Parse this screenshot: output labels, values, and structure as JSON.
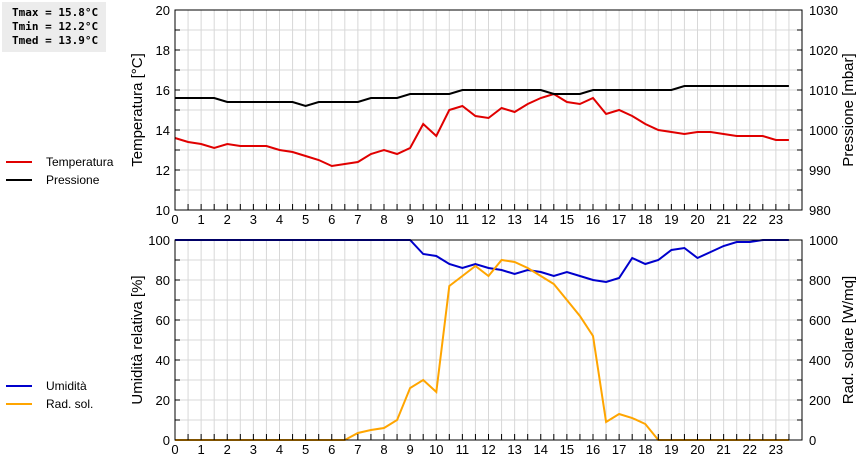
{
  "stats": {
    "tmax": "Tmax = 15.8°C",
    "tmin": "Tmin = 12.2°C",
    "tmed": "Tmed = 13.9°C"
  },
  "legend_top": [
    {
      "label": "Temperatura",
      "color": "#e00000"
    },
    {
      "label": "Pressione",
      "color": "#000000"
    }
  ],
  "legend_bottom": [
    {
      "label": "Umidità",
      "color": "#0000cc"
    },
    {
      "label": "Rad. sol.",
      "color": "#ffa500"
    }
  ],
  "chart_data": [
    {
      "type": "line",
      "title": "",
      "xlabel": "",
      "ylabel": "Temperatura [°C]",
      "y2label": "Pressione [mbar]",
      "ylim": [
        10,
        20
      ],
      "y2lim": [
        980,
        1030
      ],
      "yticks": [
        10,
        12,
        14,
        16,
        18,
        20
      ],
      "y2ticks": [
        980,
        990,
        1000,
        1010,
        1020,
        1030
      ],
      "xticks": [
        0,
        1,
        2,
        3,
        4,
        5,
        6,
        7,
        8,
        9,
        10,
        11,
        12,
        13,
        14,
        15,
        16,
        17,
        18,
        19,
        20,
        21,
        22,
        23
      ],
      "xlim": [
        0,
        24
      ],
      "grid": true,
      "legend_position": "left",
      "x": [
        0,
        0.5,
        1,
        1.5,
        2,
        2.5,
        3,
        3.5,
        4,
        4.5,
        5,
        5.5,
        6,
        6.5,
        7,
        7.5,
        8,
        8.5,
        9,
        9.5,
        10,
        10.5,
        11,
        11.5,
        12,
        12.5,
        13,
        13.5,
        14,
        14.5,
        15,
        15.5,
        16,
        16.5,
        17,
        17.5,
        18,
        18.5,
        19,
        19.5,
        20,
        20.5,
        21,
        21.5,
        22,
        22.5,
        23,
        23.5
      ],
      "series": [
        {
          "name": "Temperatura",
          "axis": "left",
          "color": "#e00000",
          "values": [
            13.6,
            13.4,
            13.3,
            13.1,
            13.3,
            13.2,
            13.2,
            13.2,
            13.0,
            12.9,
            12.7,
            12.5,
            12.2,
            12.3,
            12.4,
            12.8,
            13.0,
            12.8,
            13.1,
            14.3,
            13.7,
            15.0,
            15.2,
            14.7,
            14.6,
            15.1,
            14.9,
            15.3,
            15.6,
            15.8,
            15.4,
            15.3,
            15.6,
            14.8,
            15.0,
            14.7,
            14.3,
            14.0,
            13.9,
            13.8,
            13.9,
            13.9,
            13.8,
            13.7,
            13.7,
            13.7,
            13.5,
            13.5
          ]
        },
        {
          "name": "Pressione",
          "axis": "right",
          "color": "#000000",
          "values": [
            1008,
            1008,
            1008,
            1008,
            1007,
            1007,
            1007,
            1007,
            1007,
            1007,
            1006,
            1007,
            1007,
            1007,
            1007,
            1008,
            1008,
            1008,
            1009,
            1009,
            1009,
            1009,
            1010,
            1010,
            1010,
            1010,
            1010,
            1010,
            1010,
            1009,
            1009,
            1009,
            1010,
            1010,
            1010,
            1010,
            1010,
            1010,
            1010,
            1011,
            1011,
            1011,
            1011,
            1011,
            1011,
            1011,
            1011,
            1011
          ]
        }
      ]
    },
    {
      "type": "line",
      "title": "",
      "xlabel": "",
      "ylabel": "Umidità relativa [%]",
      "y2label": "Rad. solare [W/mq]",
      "ylim": [
        0,
        100
      ],
      "y2lim": [
        0,
        1000
      ],
      "yticks": [
        0,
        20,
        40,
        60,
        80,
        100
      ],
      "y2ticks": [
        0,
        200,
        400,
        600,
        800,
        1000
      ],
      "xticks": [
        0,
        1,
        2,
        3,
        4,
        5,
        6,
        7,
        8,
        9,
        10,
        11,
        12,
        13,
        14,
        15,
        16,
        17,
        18,
        19,
        20,
        21,
        22,
        23
      ],
      "xlim": [
        0,
        24
      ],
      "grid": true,
      "legend_position": "left",
      "x": [
        0,
        0.5,
        1,
        1.5,
        2,
        2.5,
        3,
        3.5,
        4,
        4.5,
        5,
        5.5,
        6,
        6.5,
        7,
        7.5,
        8,
        8.5,
        9,
        9.5,
        10,
        10.5,
        11,
        11.5,
        12,
        12.5,
        13,
        13.5,
        14,
        14.5,
        15,
        15.5,
        16,
        16.5,
        17,
        17.5,
        18,
        18.5,
        19,
        19.5,
        20,
        20.5,
        21,
        21.5,
        22,
        22.5,
        23,
        23.5
      ],
      "series": [
        {
          "name": "Umidità",
          "axis": "left",
          "color": "#0000cc",
          "values": [
            100,
            100,
            100,
            100,
            100,
            100,
            100,
            100,
            100,
            100,
            100,
            100,
            100,
            100,
            100,
            100,
            100,
            100,
            100,
            93,
            92,
            88,
            86,
            88,
            86,
            85,
            83,
            85,
            84,
            82,
            84,
            82,
            80,
            79,
            81,
            91,
            88,
            90,
            95,
            96,
            91,
            94,
            97,
            99,
            99,
            100,
            100,
            100
          ]
        },
        {
          "name": "Rad. sol.",
          "axis": "right",
          "color": "#ffa500",
          "values": [
            0,
            0,
            0,
            0,
            0,
            0,
            0,
            0,
            0,
            0,
            0,
            0,
            0,
            0,
            35,
            50,
            60,
            100,
            260,
            300,
            240,
            770,
            820,
            870,
            820,
            900,
            890,
            860,
            820,
            780,
            700,
            620,
            520,
            90,
            130,
            110,
            80,
            0,
            0,
            0,
            0,
            0,
            0,
            0,
            0,
            0,
            0,
            0
          ]
        }
      ]
    }
  ]
}
